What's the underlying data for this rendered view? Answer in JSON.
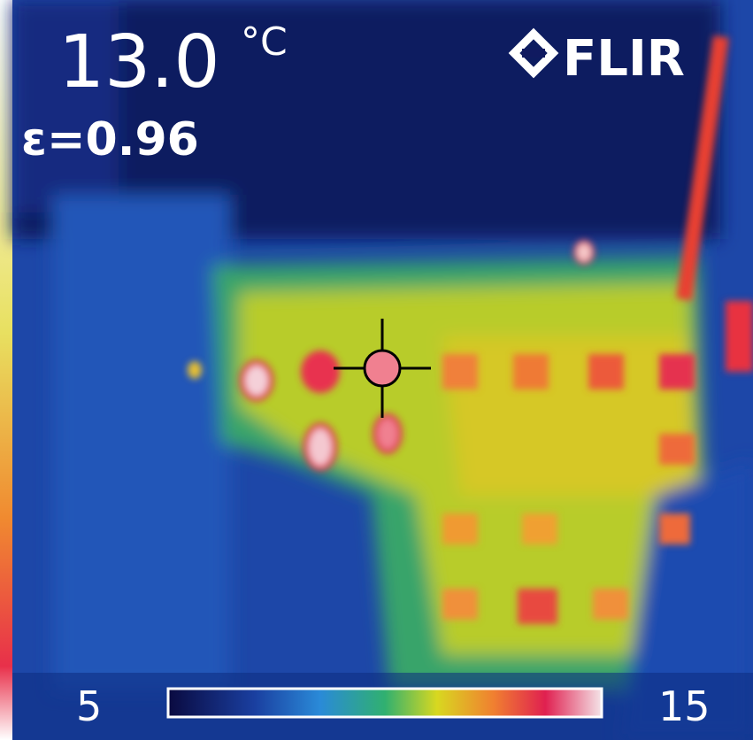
{
  "reading": {
    "temperature": "13.0",
    "unit": "°C",
    "emissivity": "ε=0.96"
  },
  "brand": {
    "logo": "FLIR"
  },
  "scale": {
    "min": 5,
    "max": 15
  }
}
